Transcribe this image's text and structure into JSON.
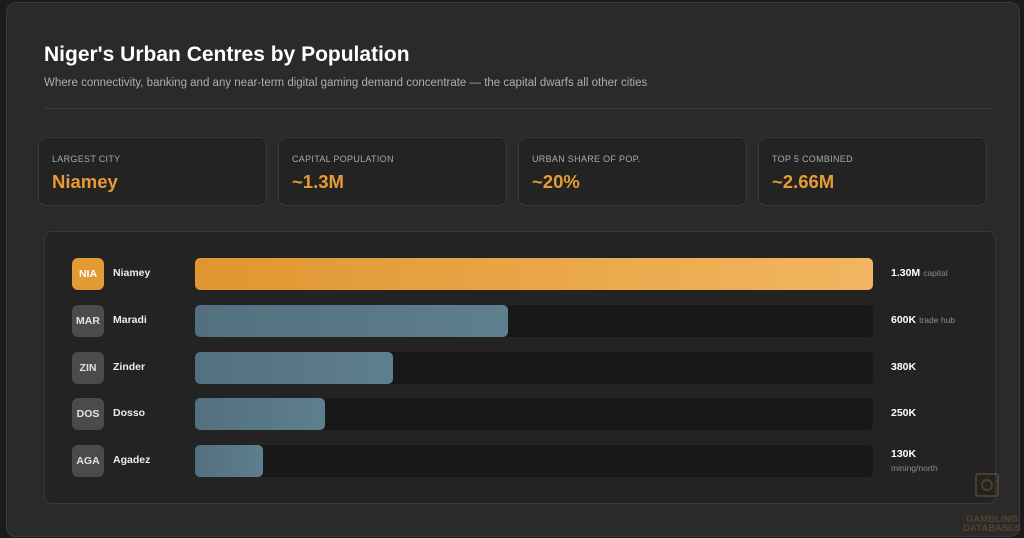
{
  "header": {
    "title": "Niger's Urban Centres by Population",
    "subtitle": "Where connectivity, banking and any near-term digital gaming demand concentrate — the capital dwarfs all other cities"
  },
  "kpis": [
    {
      "label": "LARGEST CITY",
      "value": "Niamey"
    },
    {
      "label": "CAPITAL POPULATION",
      "value": "~1.3M"
    },
    {
      "label": "URBAN SHARE OF POP.",
      "value": "~20%"
    },
    {
      "label": "TOP 5 COMBINED",
      "value": "~2.66M"
    }
  ],
  "colors": {
    "accent": "#e79b36",
    "bar_default": "#5a7a8a",
    "background": "#2a2a2a"
  },
  "chart_data": {
    "type": "bar",
    "orientation": "horizontal",
    "categories": [
      "Niamey",
      "Maradi",
      "Zinder",
      "Dosso",
      "Agadez"
    ],
    "codes": [
      "NIA",
      "MAR",
      "ZIN",
      "DOS",
      "AGA"
    ],
    "values": [
      1300000,
      600000,
      380000,
      250000,
      130000
    ],
    "value_labels": [
      "1.30M",
      "600K",
      "380K",
      "250K",
      "130K"
    ],
    "notes": [
      "capital",
      "trade hub",
      "",
      "",
      "mining/north"
    ],
    "xlim": [
      0,
      1300000
    ],
    "highlight_index": 0
  },
  "watermark": {
    "line1": "GAMBLING",
    "line2": "DATABASES"
  }
}
